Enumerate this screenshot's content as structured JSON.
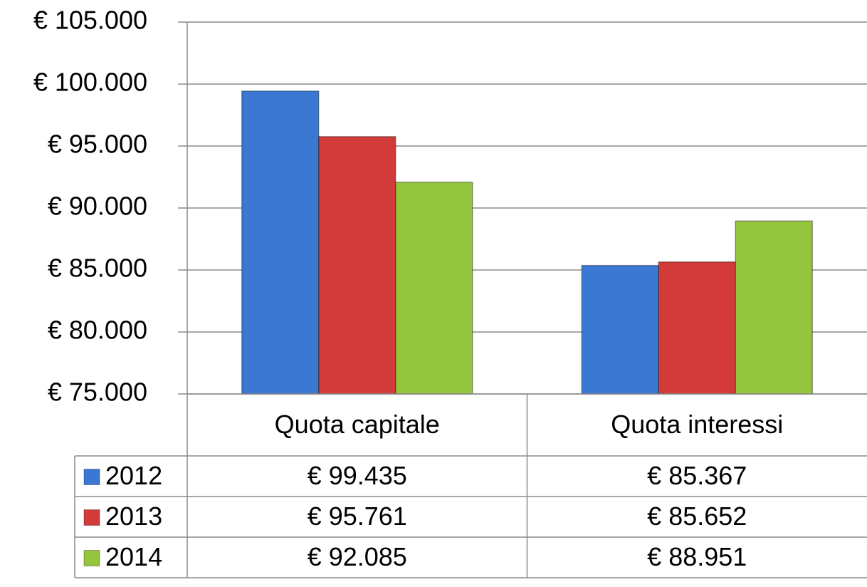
{
  "chart_data": {
    "type": "bar",
    "categories": [
      "Quota capitale",
      "Quota interessi"
    ],
    "series": [
      {
        "name": "2012",
        "color": "#3a78d4",
        "values": [
          99435,
          85367
        ],
        "value_labels": [
          "€ 99.435",
          "€ 85.367"
        ]
      },
      {
        "name": "2013",
        "color": "#d33b3b",
        "values": [
          95761,
          85652
        ],
        "value_labels": [
          "€ 95.761",
          "€ 85.652"
        ]
      },
      {
        "name": "2014",
        "color": "#95c43d",
        "values": [
          92085,
          88951
        ],
        "value_labels": [
          "€ 92.085",
          "€ 88.951"
        ]
      }
    ],
    "ylim": [
      75000,
      105000
    ],
    "yticks": [
      {
        "value": 75000,
        "label": "€ 75.000"
      },
      {
        "value": 80000,
        "label": "€ 80.000"
      },
      {
        "value": 85000,
        "label": "€ 85.000"
      },
      {
        "value": 90000,
        "label": "€ 90.000"
      },
      {
        "value": 95000,
        "label": "€ 95.000"
      },
      {
        "value": 100000,
        "label": "€ 100.000"
      },
      {
        "value": 105000,
        "label": "€ 105.000"
      }
    ],
    "grid": true
  }
}
